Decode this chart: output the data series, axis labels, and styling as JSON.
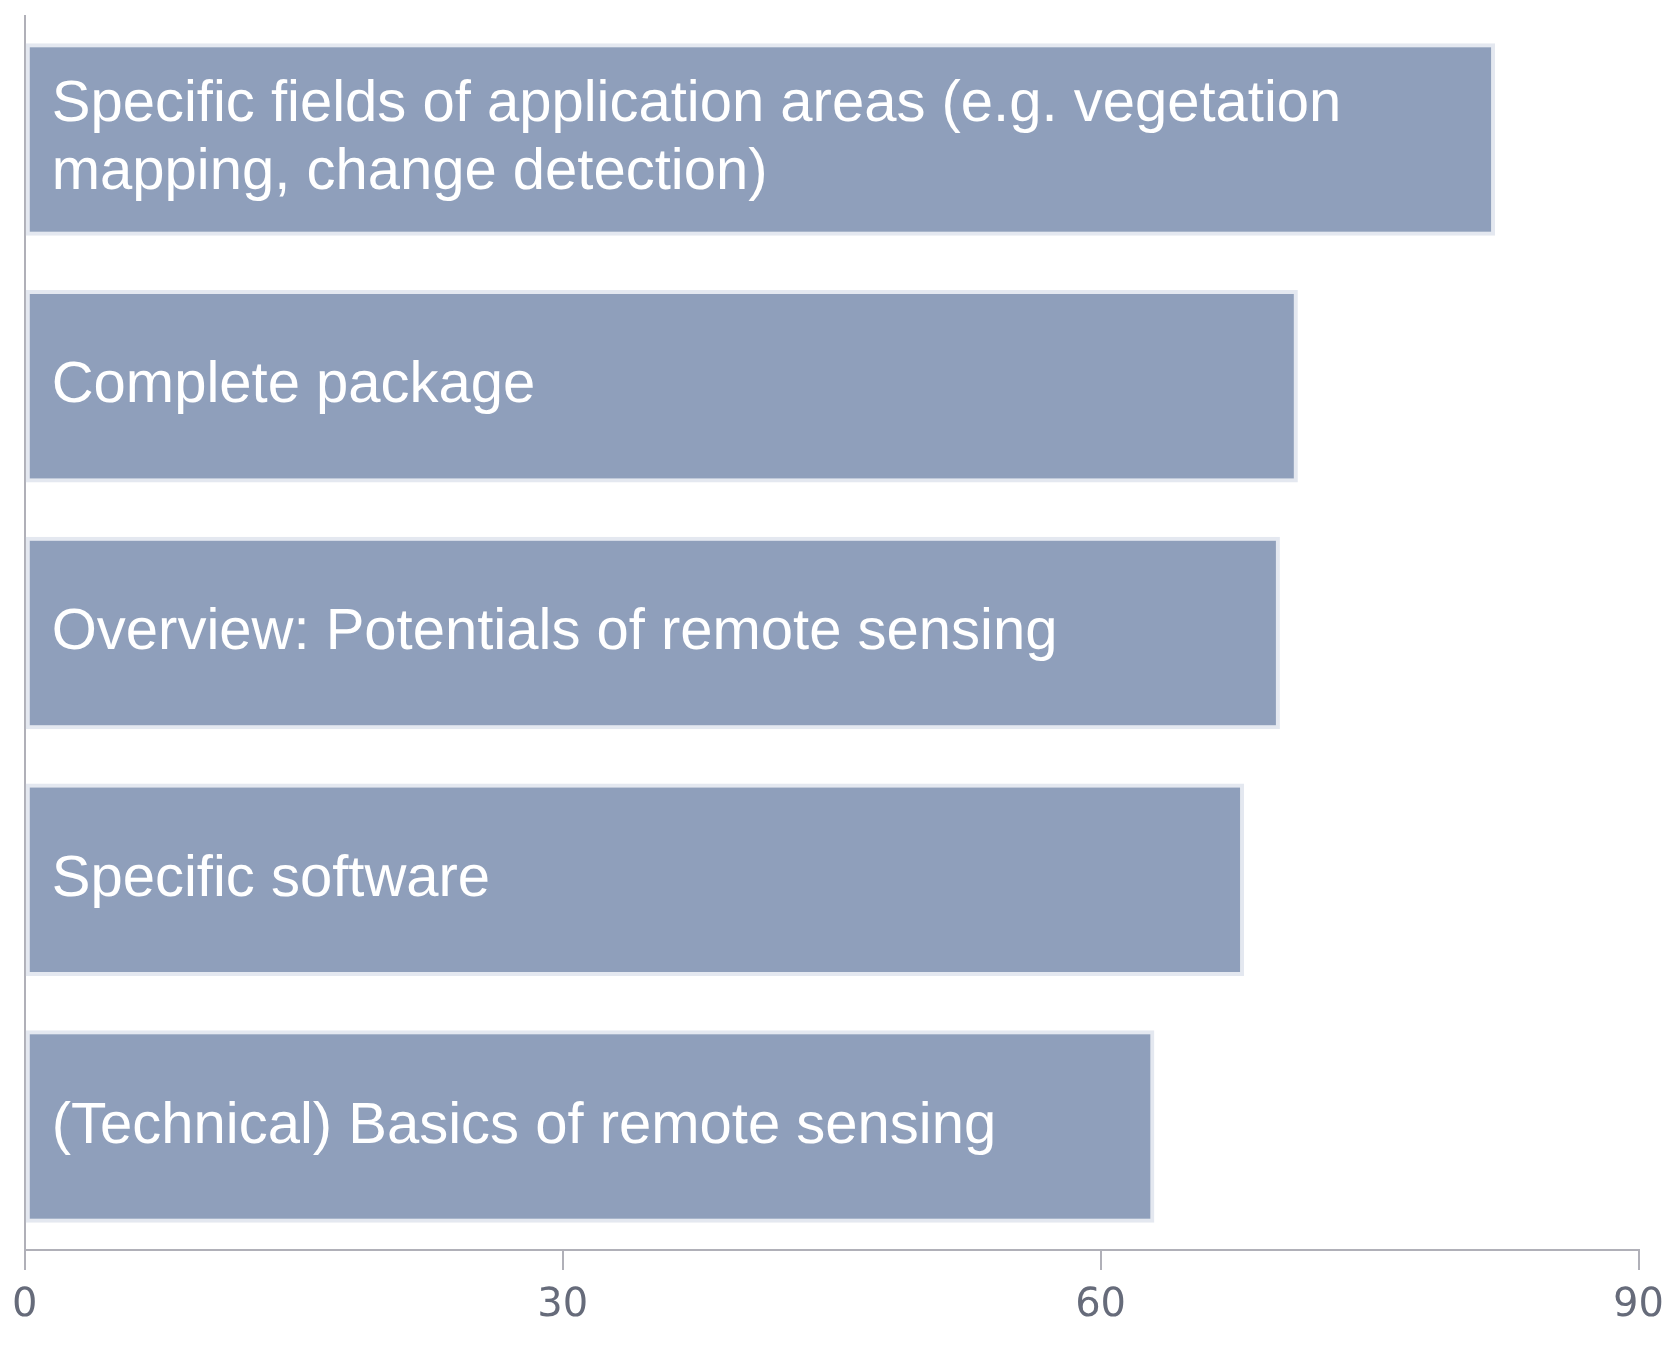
{
  "chart_data": {
    "type": "bar",
    "orientation": "horizontal",
    "categories": [
      "Specific fields of application areas (e.g. vegetation mapping, change detection)",
      "Complete package",
      "Overview: Potentials of remote sensing",
      "Specific software",
      "(Technical) Basics of remote sensing"
    ],
    "values": [
      82,
      71,
      70,
      68,
      63
    ],
    "color": "#8f9fbb",
    "xlim": [
      0,
      90
    ],
    "xticks": [
      0,
      30,
      60,
      90
    ],
    "grid": false,
    "legend": false
  }
}
